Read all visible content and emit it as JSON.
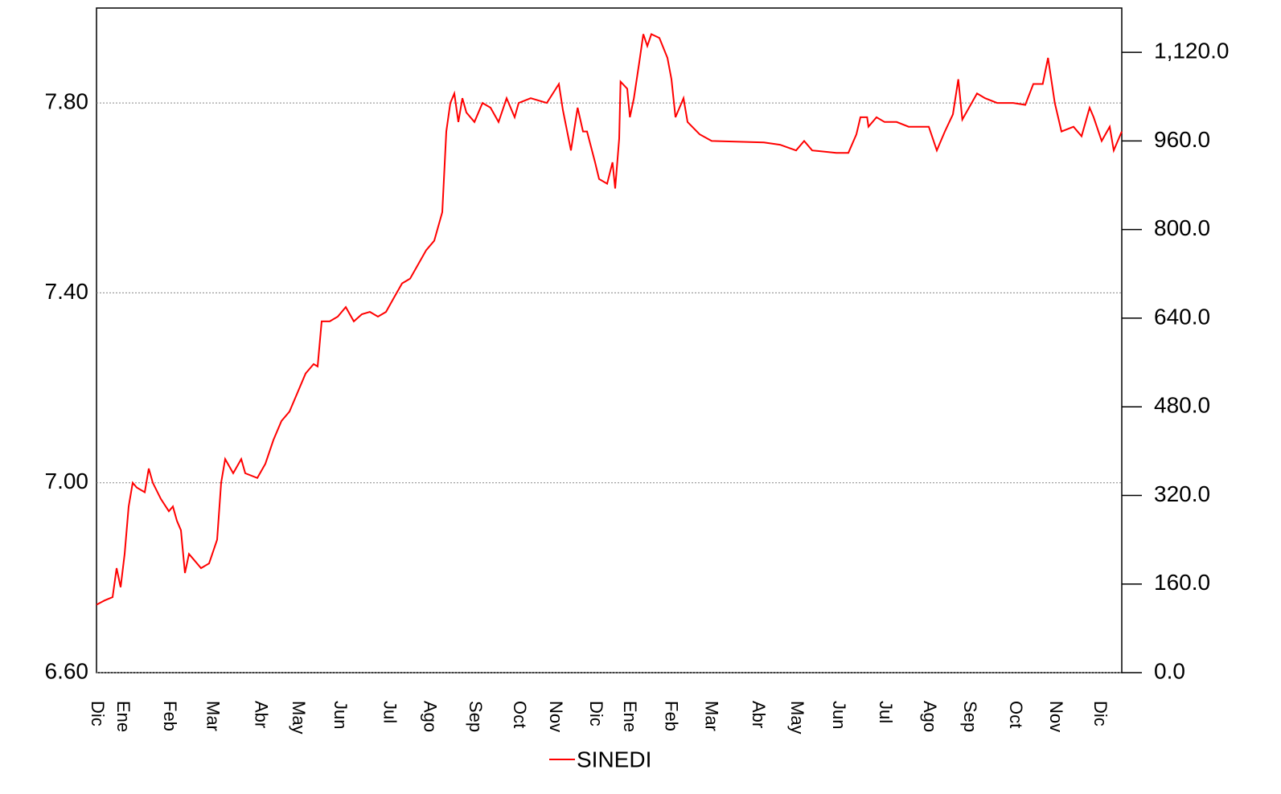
{
  "chart_data": {
    "type": "line",
    "series": [
      {
        "name": "SINEDI",
        "color": "#ff0000",
        "x": [
          0,
          6,
          12,
          15,
          18,
          21,
          24,
          27,
          30,
          36,
          39,
          42,
          48,
          54,
          57,
          60,
          63,
          66,
          69,
          72,
          78,
          84,
          90,
          93,
          96,
          102,
          108,
          111,
          120,
          126,
          132,
          138,
          144,
          150,
          156,
          162,
          165,
          168,
          174,
          180,
          186,
          192,
          198,
          204,
          210,
          216,
          222,
          228,
          234,
          240,
          246,
          252,
          258,
          261,
          264,
          267,
          270,
          273,
          276,
          282,
          288,
          294,
          300,
          306,
          312,
          315,
          324,
          336,
          345,
          348,
          354,
          359,
          363,
          366,
          372,
          375,
          381,
          385,
          387,
          390,
          391,
          396,
          398,
          401,
          405,
          408,
          411,
          414,
          420,
          426,
          429,
          432,
          435,
          438,
          441,
          450,
          459,
          498,
          510,
          522,
          528,
          534,
          552,
          561,
          567,
          570,
          575,
          576,
          582,
          588,
          597,
          606,
          621,
          627,
          633,
          639,
          643,
          646,
          651,
          657,
          663,
          672,
          684,
          693,
          699,
          706,
          710,
          715,
          720,
          729,
          735,
          741,
          744,
          750,
          756,
          759,
          762,
          765
        ],
        "values": [
          6.743,
          6.752,
          6.759,
          6.82,
          6.78,
          6.85,
          6.95,
          7.0,
          6.99,
          6.98,
          7.03,
          7.0,
          6.966,
          6.94,
          6.95,
          6.92,
          6.9,
          6.81,
          6.85,
          6.84,
          6.82,
          6.83,
          6.88,
          7.0,
          7.05,
          7.02,
          7.05,
          7.02,
          7.01,
          7.04,
          7.09,
          7.13,
          7.15,
          7.19,
          7.23,
          7.25,
          7.245,
          7.34,
          7.34,
          7.35,
          7.37,
          7.34,
          7.355,
          7.36,
          7.35,
          7.36,
          7.39,
          7.42,
          7.43,
          7.46,
          7.49,
          7.51,
          7.57,
          7.74,
          7.8,
          7.82,
          7.76,
          7.81,
          7.78,
          7.76,
          7.8,
          7.79,
          7.76,
          7.81,
          7.77,
          7.8,
          7.81,
          7.8,
          7.84,
          7.785,
          7.7,
          7.79,
          7.74,
          7.74,
          7.675,
          7.64,
          7.63,
          7.675,
          7.62,
          7.725,
          7.845,
          7.83,
          7.77,
          7.81,
          7.886,
          7.945,
          7.92,
          7.945,
          7.937,
          7.895,
          7.85,
          7.77,
          7.79,
          7.81,
          7.76,
          7.734,
          7.72,
          7.717,
          7.712,
          7.7,
          7.72,
          7.7,
          7.695,
          7.695,
          7.734,
          7.77,
          7.77,
          7.75,
          7.77,
          7.76,
          7.76,
          7.75,
          7.75,
          7.7,
          7.74,
          7.776,
          7.85,
          7.765,
          7.79,
          7.82,
          7.81,
          7.8,
          7.8,
          7.796,
          7.84,
          7.84,
          7.895,
          7.8,
          7.74,
          7.75,
          7.73,
          7.79,
          7.77,
          7.72,
          7.75,
          7.7,
          7.72,
          7.74
        ]
      }
    ],
    "xlim": [
      0,
      765
    ],
    "xticks": [
      {
        "value": 0,
        "label": "Dic"
      },
      {
        "value": 19,
        "label": "Ene"
      },
      {
        "value": 54,
        "label": "Feb"
      },
      {
        "value": 86,
        "label": "Mar"
      },
      {
        "value": 122,
        "label": "Abr"
      },
      {
        "value": 150,
        "label": "May"
      },
      {
        "value": 181,
        "label": "Jun"
      },
      {
        "value": 218,
        "label": "Jul"
      },
      {
        "value": 248,
        "label": "Ago"
      },
      {
        "value": 282,
        "label": "Sep"
      },
      {
        "value": 315,
        "label": "Oct"
      },
      {
        "value": 342,
        "label": "Nov"
      },
      {
        "value": 372,
        "label": "Dic"
      },
      {
        "value": 397,
        "label": "Ene"
      },
      {
        "value": 428,
        "label": "Feb"
      },
      {
        "value": 458,
        "label": "Mar"
      },
      {
        "value": 493,
        "label": "Abr"
      },
      {
        "value": 522,
        "label": "May"
      },
      {
        "value": 553,
        "label": "Jun"
      },
      {
        "value": 588,
        "label": "Jul"
      },
      {
        "value": 621,
        "label": "Ago"
      },
      {
        "value": 651,
        "label": "Sep"
      },
      {
        "value": 685,
        "label": "Oct"
      },
      {
        "value": 715,
        "label": "Nov"
      },
      {
        "value": 748,
        "label": "Dic"
      }
    ],
    "ylim": [
      6.6,
      8.0
    ],
    "yticks": [
      {
        "value": 6.6,
        "label": "6.60"
      },
      {
        "value": 7.0,
        "label": "7.00"
      },
      {
        "value": 7.4,
        "label": "7.40"
      },
      {
        "value": 7.8,
        "label": "7.80"
      }
    ],
    "y2lim": [
      0,
      1200
    ],
    "y2ticks": [
      {
        "value": 0,
        "label": "0.0"
      },
      {
        "value": 160,
        "label": "160.0"
      },
      {
        "value": 320,
        "label": "320.0"
      },
      {
        "value": 480,
        "label": "480.0"
      },
      {
        "value": 640,
        "label": "640.0"
      },
      {
        "value": 800,
        "label": "800.0"
      },
      {
        "value": 960,
        "label": "960.0"
      },
      {
        "value": 1120,
        "label": "1,120.0"
      }
    ],
    "grid": true,
    "legend": "bottom"
  }
}
